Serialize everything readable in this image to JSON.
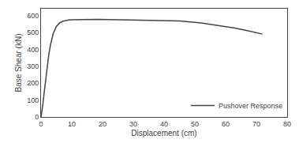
{
  "chart_data": {
    "type": "line",
    "xlabel": "Displacement (cm)",
    "ylabel": "Base Shear (kN)",
    "x": [
      0,
      0.3,
      0.6,
      1.0,
      1.5,
      2.0,
      2.5,
      3.0,
      3.5,
      4.0,
      5.0,
      6.0,
      7.0,
      8.0,
      9.0,
      10.0,
      12.0,
      15.0,
      18.0,
      22.0,
      27.0,
      32.0,
      38.0,
      45.0,
      52.0,
      58.0,
      63.0,
      67.0,
      70.0,
      72.0
    ],
    "series": [
      {
        "name": "Pushover Response",
        "color": "#444444",
        "values": [
          0,
          30,
          75,
          140,
          220,
          300,
          365,
          420,
          460,
          495,
          535,
          555,
          565,
          570,
          573,
          575,
          576,
          577,
          577,
          576,
          575,
          574,
          572,
          568,
          556,
          540,
          526,
          510,
          499,
          490
        ]
      }
    ],
    "xlim": [
      0,
      80
    ],
    "ylim": [
      0,
      640
    ],
    "xticks": [
      0,
      10,
      20,
      30,
      40,
      50,
      60,
      70,
      80
    ],
    "yticks": [
      0,
      100,
      200,
      300,
      400,
      500,
      600
    ],
    "grid": false,
    "legend": "lower right"
  }
}
